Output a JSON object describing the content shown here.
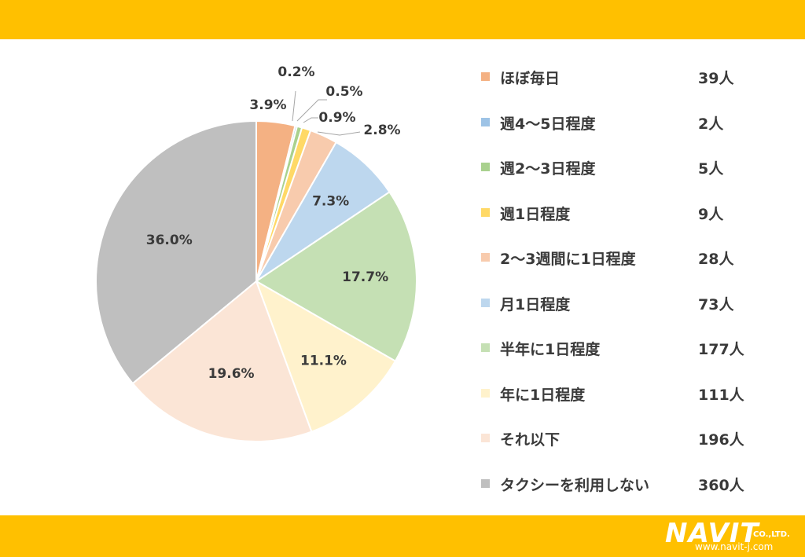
{
  "theme": {
    "band_color": "#FFC000"
  },
  "chart_data": {
    "type": "pie",
    "slices": [
      {
        "label": "ほぼ毎日",
        "count_label": "39人",
        "percent": 3.9,
        "percent_label": "3.9%",
        "color": "#F4B183"
      },
      {
        "label": "週4～5日程度",
        "count_label": "2人",
        "percent": 0.2,
        "percent_label": "0.2%",
        "color": "#9DC3E6"
      },
      {
        "label": "週2～3日程度",
        "count_label": "5人",
        "percent": 0.5,
        "percent_label": "0.5%",
        "color": "#A9D18E"
      },
      {
        "label": "週1日程度",
        "count_label": "9人",
        "percent": 0.9,
        "percent_label": "0.9%",
        "color": "#FFD966"
      },
      {
        "label": "2～3週間に1日程度",
        "count_label": "28人",
        "percent": 2.8,
        "percent_label": "2.8%",
        "color": "#F8CBAD"
      },
      {
        "label": "月1日程度",
        "count_label": "73人",
        "percent": 7.3,
        "percent_label": "7.3%",
        "color": "#BDD7EE"
      },
      {
        "label": "半年に1日程度",
        "count_label": "177人",
        "percent": 17.7,
        "percent_label": "17.7%",
        "color": "#C5E0B4"
      },
      {
        "label": "年に1日程度",
        "count_label": "111人",
        "percent": 11.1,
        "percent_label": "11.1%",
        "color": "#FFF2CC"
      },
      {
        "label": "それ以下",
        "count_label": "196人",
        "percent": 19.6,
        "percent_label": "19.6%",
        "color": "#FBE5D6"
      },
      {
        "label": "タクシーを利用しない",
        "count_label": "360人",
        "percent": 36.0,
        "percent_label": "36.0%",
        "color": "#BFBFBF"
      }
    ],
    "legend_position": "right",
    "start": "12 o'clock, clockwise"
  },
  "branding": {
    "logo_text": "NAVIT",
    "logo_suffix": "CO.,LTD.",
    "url": "www.navit-j.com"
  }
}
